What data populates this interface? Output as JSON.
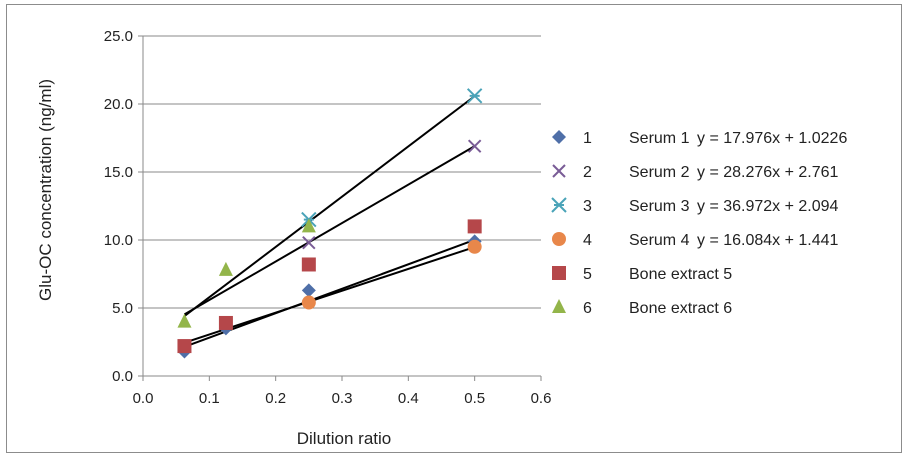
{
  "chart_data": {
    "type": "scatter",
    "title": "",
    "xlabel": "Dilution ratio",
    "ylabel": "Glu-OC concentration (ng/ml)",
    "xlim": [
      0,
      0.6
    ],
    "ylim": [
      0,
      25
    ],
    "x_ticks": [
      "0.0",
      "0.1",
      "0.2",
      "0.3",
      "0.4",
      "0.5",
      "0.6"
    ],
    "y_ticks": [
      "0.0",
      "5.0",
      "10.0",
      "15.0",
      "20.0",
      "25.0"
    ],
    "grid": "horizontal",
    "legend_position": "right",
    "series": [
      {
        "name": "1",
        "label": "Serum 1",
        "equation": "y = 17.976x + 1.0226",
        "marker": "diamond",
        "color": "#4f6fa8",
        "points": [
          [
            0.0625,
            1.8
          ],
          [
            0.125,
            3.5
          ],
          [
            0.25,
            6.3
          ],
          [
            0.5,
            9.9
          ]
        ]
      },
      {
        "name": "2",
        "label": "Serum 2",
        "equation": "y = 28.276x + 2.761",
        "marker": "x",
        "color": "#7a5c96",
        "points": [
          [
            0.25,
            9.8
          ],
          [
            0.5,
            16.9
          ]
        ]
      },
      {
        "name": "3",
        "label": "Serum 3",
        "equation": "y = 36.972x + 2.094",
        "marker": "star",
        "color": "#4aa3b8",
        "points": [
          [
            0.25,
            11.5
          ],
          [
            0.5,
            20.6
          ]
        ]
      },
      {
        "name": "4",
        "label": "Serum 4",
        "equation": "y = 16.084x + 1.441",
        "marker": "circle",
        "color": "#e8874a",
        "points": [
          [
            0.25,
            5.4
          ],
          [
            0.5,
            9.5
          ]
        ]
      },
      {
        "name": "5",
        "label": "Bone extract 5",
        "equation": "",
        "marker": "square",
        "color": "#b5474a",
        "points": [
          [
            0.0625,
            2.2
          ],
          [
            0.125,
            3.9
          ],
          [
            0.25,
            8.2
          ],
          [
            0.5,
            11.0
          ]
        ]
      },
      {
        "name": "6",
        "label": "Bone extract 6",
        "equation": "",
        "marker": "triangle",
        "color": "#93b54a",
        "points": [
          [
            0.0625,
            4.0
          ],
          [
            0.125,
            7.8
          ],
          [
            0.25,
            11.0
          ]
        ]
      }
    ],
    "trendlines": [
      {
        "series": "1",
        "slope": 17.976,
        "intercept": 1.0226,
        "x_range": [
          0.0625,
          0.5
        ]
      },
      {
        "series": "2",
        "slope": 28.276,
        "intercept": 2.761,
        "x_range": [
          0.0625,
          0.5
        ]
      },
      {
        "series": "3",
        "slope": 36.972,
        "intercept": 2.094,
        "x_range": [
          0.0625,
          0.5
        ]
      },
      {
        "series": "4",
        "slope": 16.084,
        "intercept": 1.441,
        "x_range": [
          0.0625,
          0.5
        ]
      }
    ]
  }
}
